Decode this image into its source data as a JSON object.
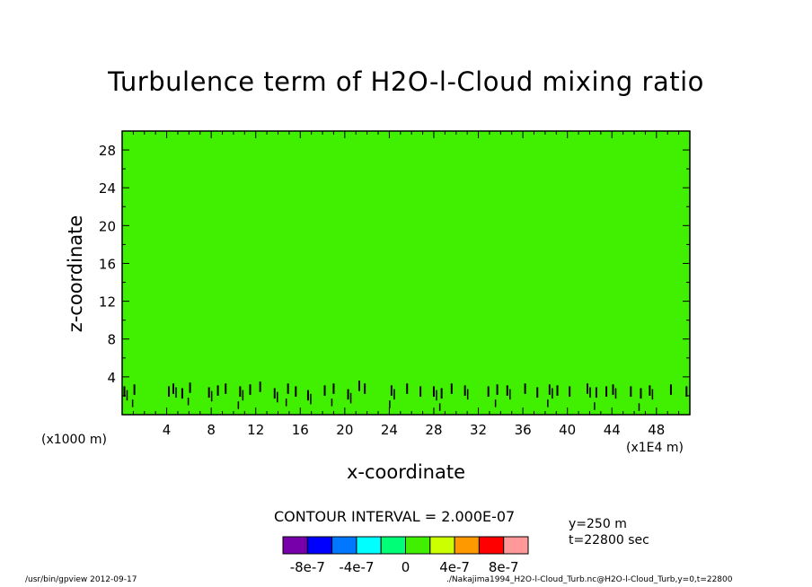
{
  "chart_data": {
    "type": "heatmap",
    "title": "Turbulence term of H2O-l-Cloud mixing ratio",
    "xlabel": "x-coordinate",
    "ylabel": "z-coordinate",
    "x_unit_left": "(x1000 m)",
    "x_unit_right": "(x1E4 m)",
    "xlim": [
      0,
      51
    ],
    "ylim": [
      0,
      30
    ],
    "xticks": [
      4,
      8,
      12,
      16,
      20,
      24,
      28,
      32,
      36,
      40,
      44,
      48
    ],
    "xtick_labels": [
      "4",
      "8",
      "12",
      "16",
      "20",
      "24",
      "28",
      "32",
      "36",
      "40",
      "44",
      "48"
    ],
    "yticks": [
      4,
      8,
      12,
      16,
      20,
      24,
      28
    ],
    "ytick_labels": [
      "4",
      "8",
      "12",
      "16",
      "20",
      "24",
      "28"
    ],
    "field_color": "#40f000",
    "contour_interval": "CONTOUR INTERVAL = 2.000E-07",
    "colorbar": {
      "colors": [
        "#7700aa",
        "#0000ff",
        "#0077ff",
        "#00ffff",
        "#00ff77",
        "#40f000",
        "#ccff00",
        "#ff9900",
        "#ff0000",
        "#ff9999"
      ],
      "labels": [
        "-8e-7",
        "-4e-7",
        "0",
        "4e-7",
        "8e-7"
      ],
      "label_values": [
        -8e-07,
        -4e-07,
        0,
        4e-07,
        8e-07
      ],
      "range": [
        -1e-06,
        1e-06
      ]
    },
    "contour_features": [
      {
        "x": 0.2,
        "z_top": 3.0
      },
      {
        "x": 1.1,
        "z_top": 3.2
      },
      {
        "x": 4.2,
        "z_top": 3.0
      },
      {
        "x": 4.6,
        "z_top": 3.3
      },
      {
        "x": 5.4,
        "z_top": 2.8
      },
      {
        "x": 6.1,
        "z_top": 3.4
      },
      {
        "x": 7.8,
        "z_top": 2.9
      },
      {
        "x": 8.6,
        "z_top": 3.1
      },
      {
        "x": 9.3,
        "z_top": 3.3
      },
      {
        "x": 10.6,
        "z_top": 3.0
      },
      {
        "x": 11.5,
        "z_top": 3.2
      },
      {
        "x": 12.4,
        "z_top": 3.5
      },
      {
        "x": 13.7,
        "z_top": 2.8
      },
      {
        "x": 14.9,
        "z_top": 3.3
      },
      {
        "x": 15.6,
        "z_top": 3.0
      },
      {
        "x": 16.7,
        "z_top": 2.6
      },
      {
        "x": 18.2,
        "z_top": 3.1
      },
      {
        "x": 19.0,
        "z_top": 3.3
      },
      {
        "x": 20.3,
        "z_top": 2.7
      },
      {
        "x": 21.3,
        "z_top": 3.6
      },
      {
        "x": 21.8,
        "z_top": 3.3
      },
      {
        "x": 24.2,
        "z_top": 3.1
      },
      {
        "x": 25.6,
        "z_top": 3.3
      },
      {
        "x": 26.8,
        "z_top": 3.0
      },
      {
        "x": 28.0,
        "z_top": 3.0
      },
      {
        "x": 28.7,
        "z_top": 2.8
      },
      {
        "x": 29.6,
        "z_top": 3.3
      },
      {
        "x": 30.8,
        "z_top": 3.1
      },
      {
        "x": 32.9,
        "z_top": 3.0
      },
      {
        "x": 33.7,
        "z_top": 3.2
      },
      {
        "x": 34.6,
        "z_top": 3.1
      },
      {
        "x": 36.2,
        "z_top": 3.3
      },
      {
        "x": 37.3,
        "z_top": 2.9
      },
      {
        "x": 38.4,
        "z_top": 3.2
      },
      {
        "x": 39.1,
        "z_top": 3.1
      },
      {
        "x": 40.2,
        "z_top": 3.0
      },
      {
        "x": 41.8,
        "z_top": 3.3
      },
      {
        "x": 42.6,
        "z_top": 2.9
      },
      {
        "x": 43.5,
        "z_top": 3.0
      },
      {
        "x": 44.1,
        "z_top": 3.2
      },
      {
        "x": 45.7,
        "z_top": 3.0
      },
      {
        "x": 46.6,
        "z_top": 2.8
      },
      {
        "x": 47.4,
        "z_top": 3.1
      },
      {
        "x": 49.3,
        "z_top": 3.2
      },
      {
        "x": 50.7,
        "z_top": 3.0
      }
    ]
  },
  "annotations": {
    "y_coord": "y=250 m",
    "t_coord": "t=22800 sec"
  },
  "footer": {
    "left": "/usr/bin/gpview  2012-09-17",
    "right": "./Nakajima1994_H2O-l-Cloud_Turb.nc@H2O-l-Cloud_Turb,y=0,t=22800"
  }
}
